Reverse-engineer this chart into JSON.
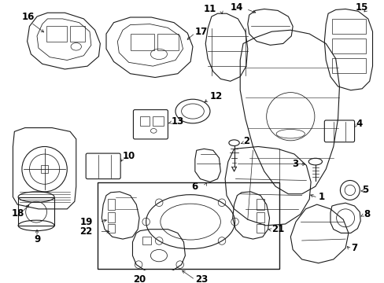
{
  "bg_color": "#ffffff",
  "line_color": "#1a1a1a",
  "text_color": "#000000",
  "lw": 0.8,
  "fig_w": 4.89,
  "fig_h": 3.6,
  "dpi": 100,
  "parts": {
    "label_fontsize": 8.5,
    "arrow_lw": 0.5
  }
}
